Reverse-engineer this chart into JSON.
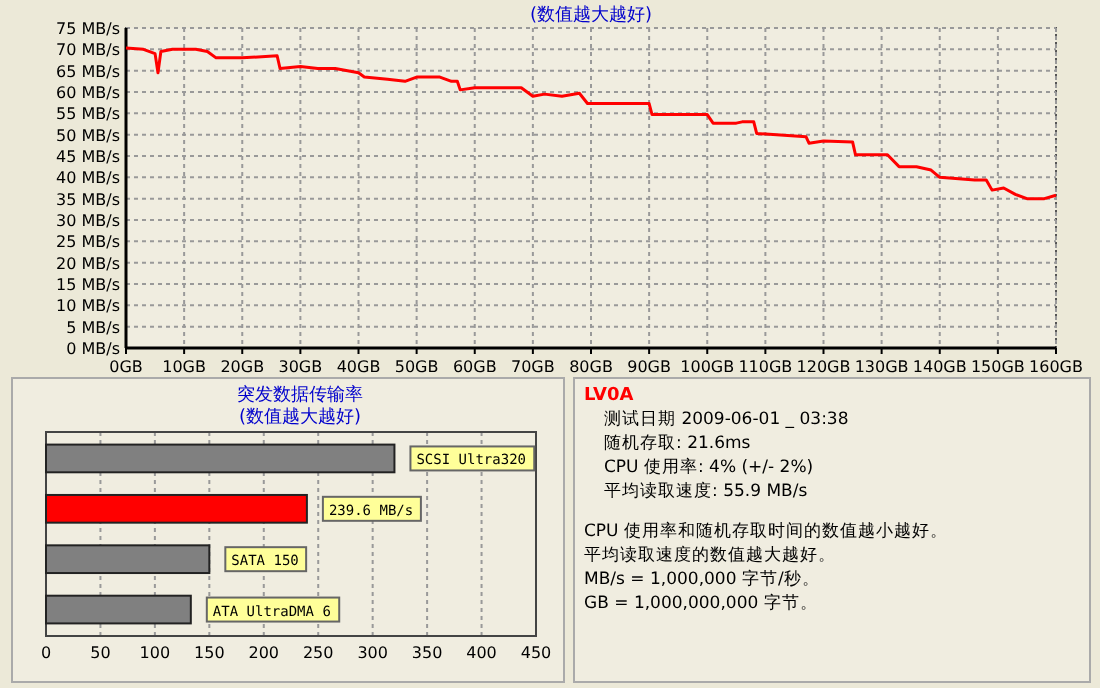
{
  "chart_data": [
    {
      "type": "line",
      "title": "(数值越大越好)",
      "x": [
        0,
        3,
        5,
        5.5,
        6,
        8,
        12,
        14,
        15.5,
        20,
        26,
        26.5,
        30,
        33,
        36,
        40,
        41,
        45,
        48,
        50,
        54,
        56,
        57,
        57.5,
        60,
        64,
        68,
        70,
        72,
        75,
        78,
        79.4,
        90,
        90.5,
        100,
        101,
        105,
        106,
        108,
        108.5,
        117,
        117.5,
        120,
        125,
        125.5,
        131,
        133,
        136,
        138.5,
        140,
        146,
        148,
        149,
        151,
        153,
        155,
        158,
        160
      ],
      "series": [
        {
          "color": "#ff0000",
          "values": [
            70.3,
            70,
            69,
            64.5,
            69.5,
            70,
            70,
            69.5,
            68,
            68,
            68.5,
            65.5,
            66,
            65.5,
            65.5,
            64.5,
            63.5,
            63,
            62.5,
            63.5,
            63.5,
            62.5,
            62.5,
            60.5,
            61,
            61,
            61,
            59,
            59.5,
            59,
            59.7,
            57.3,
            57.3,
            54.7,
            54.7,
            52.7,
            52.7,
            53,
            53,
            50.3,
            49.5,
            48,
            48.5,
            48.3,
            45.3,
            45.3,
            42.5,
            42.5,
            41.7,
            40,
            39.4,
            39.4,
            37,
            37.5,
            36,
            35,
            35,
            35.8
          ]
        }
      ],
      "xlim": [
        0,
        160
      ],
      "xticks": [
        {
          "value": 0,
          "label": "0GB"
        },
        {
          "value": 10,
          "label": "10GB"
        },
        {
          "value": 20,
          "label": "20GB"
        },
        {
          "value": 30,
          "label": "30GB"
        },
        {
          "value": 40,
          "label": "40GB"
        },
        {
          "value": 50,
          "label": "50GB"
        },
        {
          "value": 60,
          "label": "60GB"
        },
        {
          "value": 70,
          "label": "70GB"
        },
        {
          "value": 80,
          "label": "80GB"
        },
        {
          "value": 90,
          "label": "90GB"
        },
        {
          "value": 100,
          "label": "100GB"
        },
        {
          "value": 110,
          "label": "110GB"
        },
        {
          "value": 120,
          "label": "120GB"
        },
        {
          "value": 130,
          "label": "130GB"
        },
        {
          "value": 140,
          "label": "140GB"
        },
        {
          "value": 150,
          "label": "150GB"
        },
        {
          "value": 160,
          "label": "160GB"
        }
      ],
      "ylim": [
        0,
        75
      ],
      "yticks": [
        {
          "value": 0,
          "label": "0 MB/s"
        },
        {
          "value": 5,
          "label": "5 MB/s"
        },
        {
          "value": 10,
          "label": "10 MB/s"
        },
        {
          "value": 15,
          "label": "15 MB/s"
        },
        {
          "value": 20,
          "label": "20 MB/s"
        },
        {
          "value": 25,
          "label": "25 MB/s"
        },
        {
          "value": 30,
          "label": "30 MB/s"
        },
        {
          "value": 35,
          "label": "35 MB/s"
        },
        {
          "value": 40,
          "label": "40 MB/s"
        },
        {
          "value": 45,
          "label": "45 MB/s"
        },
        {
          "value": 50,
          "label": "50 MB/s"
        },
        {
          "value": 55,
          "label": "55 MB/s"
        },
        {
          "value": 60,
          "label": "60 MB/s"
        },
        {
          "value": 65,
          "label": "65 MB/s"
        },
        {
          "value": 70,
          "label": "70 MB/s"
        },
        {
          "value": 75,
          "label": "75 MB/s"
        }
      ],
      "grid": true,
      "line_style": "solid",
      "marker": "none"
    },
    {
      "type": "bar",
      "orientation": "horizontal",
      "title": "突发数据传输率",
      "subtitle": "(数值越大越好)",
      "categories": [
        "SCSI Ultra320",
        null,
        "SATA 150",
        "ATA UltraDMA 6"
      ],
      "values": [
        320,
        239.6,
        150,
        133
      ],
      "colors": [
        "#808080",
        "#ff0000",
        "#808080",
        "#808080"
      ],
      "value_labels": [
        null,
        "239.6 MB/s",
        null,
        null
      ],
      "xlim": [
        0,
        450
      ],
      "xticks": [
        0,
        50,
        100,
        150,
        200,
        250,
        300,
        350,
        400,
        450
      ],
      "grid": "x"
    },
    {
      "type": "other",
      "title": "LV0A",
      "annotations": [
        "测试日期 2009-06-01 _ 03:38",
        "随机存取: 21.6ms",
        "CPU 使用率: 4% (+/- 2%)",
        "平均读取速度: 55.9 MB/s",
        "CPU 使用率和随机存取时间的数值越小越好。",
        "平均读取速度的数值越大越好。",
        "MB/s = 1,000,000 字节/秒。",
        "GB = 1,000,000,000 字节。"
      ]
    }
  ]
}
